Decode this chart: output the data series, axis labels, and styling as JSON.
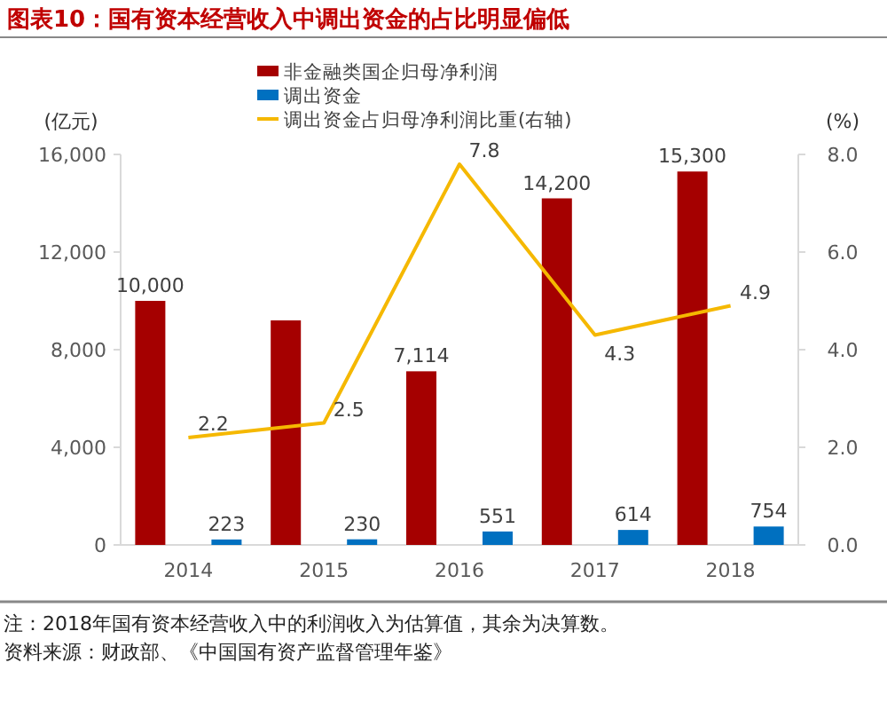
{
  "chart_data": {
    "type": "bar",
    "title": "图表10：国有资本经营收入中调出资金的占比明显偏低",
    "categories": [
      "2014",
      "2015",
      "2016",
      "2017",
      "2018"
    ],
    "series": [
      {
        "name": "非金融类国企归母净利润",
        "color": "#a50000",
        "values": [
          10000,
          9200,
          7114,
          14200,
          15300
        ],
        "value_labels": [
          "10,000",
          null,
          "7,114",
          "14,200",
          "15,300"
        ]
      },
      {
        "name": "调出资金",
        "color": "#0070c0",
        "values": [
          223,
          230,
          551,
          614,
          754
        ],
        "value_labels": [
          "223",
          "230",
          "551",
          "614",
          "754"
        ]
      },
      {
        "name": "调出资金占归母净利润比重(右轴)",
        "type": "line",
        "axis": "y2",
        "color": "#f5b800",
        "values": [
          2.2,
          2.5,
          7.8,
          4.3,
          4.9
        ],
        "value_labels": [
          "2.2",
          "2.5",
          "7.8",
          "4.3",
          "4.9"
        ]
      }
    ],
    "ylabel": "(亿元)",
    "y2label": "(%)",
    "ylim": [
      0,
      16000
    ],
    "yticks": [
      0,
      {
        "value": 4000,
        "label": "4,000"
      },
      {
        "value": 8000,
        "label": "8,000"
      },
      {
        "value": 12000,
        "label": "12,000"
      },
      {
        "value": 16000,
        "label": "16,000"
      }
    ],
    "y2lim": [
      0,
      8
    ],
    "y2ticks": [
      {
        "value": 0,
        "label": "0.0"
      },
      {
        "value": 2,
        "label": "2.0"
      },
      {
        "value": 4,
        "label": "4.0"
      },
      {
        "value": 6,
        "label": "6.0"
      },
      {
        "value": 8,
        "label": "8.0"
      }
    ],
    "legend": "top",
    "grid": false,
    "annotations": [
      "注：2018年国有资本经营收入中的利润收入为估算值，其余为决算数。",
      "资料来源：财政部、《中国国有资产监督管理年鉴》"
    ]
  }
}
